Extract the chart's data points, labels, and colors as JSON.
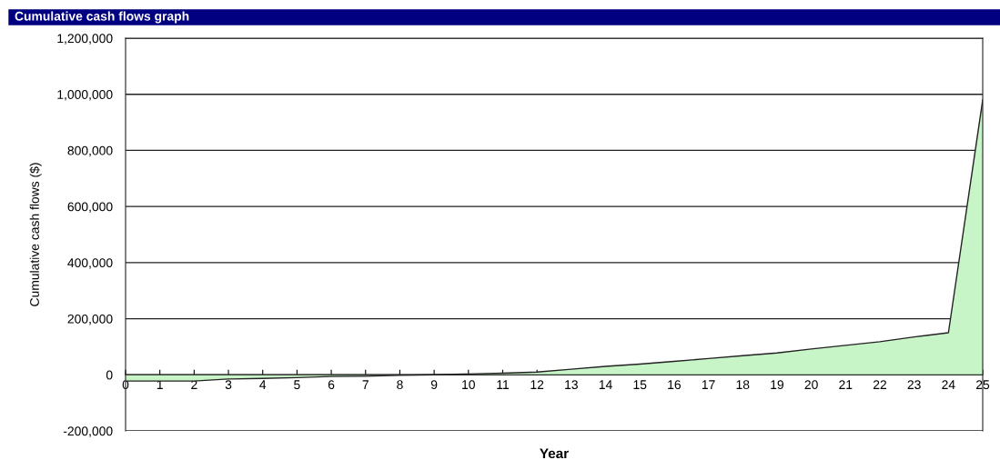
{
  "chart_data": {
    "type": "area",
    "title": "Cumulative cash flows graph",
    "xlabel": "Year",
    "ylabel": "Cumulative cash flows ($)",
    "x": [
      0,
      1,
      2,
      3,
      4,
      5,
      6,
      7,
      8,
      9,
      10,
      11,
      12,
      13,
      14,
      15,
      16,
      17,
      18,
      19,
      20,
      21,
      22,
      23,
      24,
      25
    ],
    "series": [
      {
        "color": "#c8f5c8",
        "values": [
          -22000,
          -22000,
          -22000,
          -15000,
          -13000,
          -10000,
          -6000,
          -5000,
          -2000,
          0,
          3000,
          6000,
          10000,
          20000,
          30000,
          38000,
          48000,
          58000,
          68000,
          78000,
          92000,
          105000,
          118000,
          135000,
          150000,
          980000
        ]
      }
    ],
    "xlim": [
      0,
      25
    ],
    "xticks": [
      0,
      1,
      2,
      3,
      4,
      5,
      6,
      7,
      8,
      9,
      10,
      11,
      12,
      13,
      14,
      15,
      16,
      17,
      18,
      19,
      20,
      21,
      22,
      23,
      24,
      25
    ],
    "ylim": [
      -200000,
      1200000
    ],
    "yticks": [
      {
        "value": -200000,
        "label": "-200,000"
      },
      0,
      {
        "value": 200000,
        "label": "200,000"
      },
      {
        "value": 400000,
        "label": "400,000"
      },
      {
        "value": 600000,
        "label": "600,000"
      },
      {
        "value": 800000,
        "label": "800,000"
      },
      {
        "value": 1000000,
        "label": "1,000,000"
      },
      {
        "value": 1200000,
        "label": "1,200,000"
      }
    ],
    "grid": "y"
  }
}
